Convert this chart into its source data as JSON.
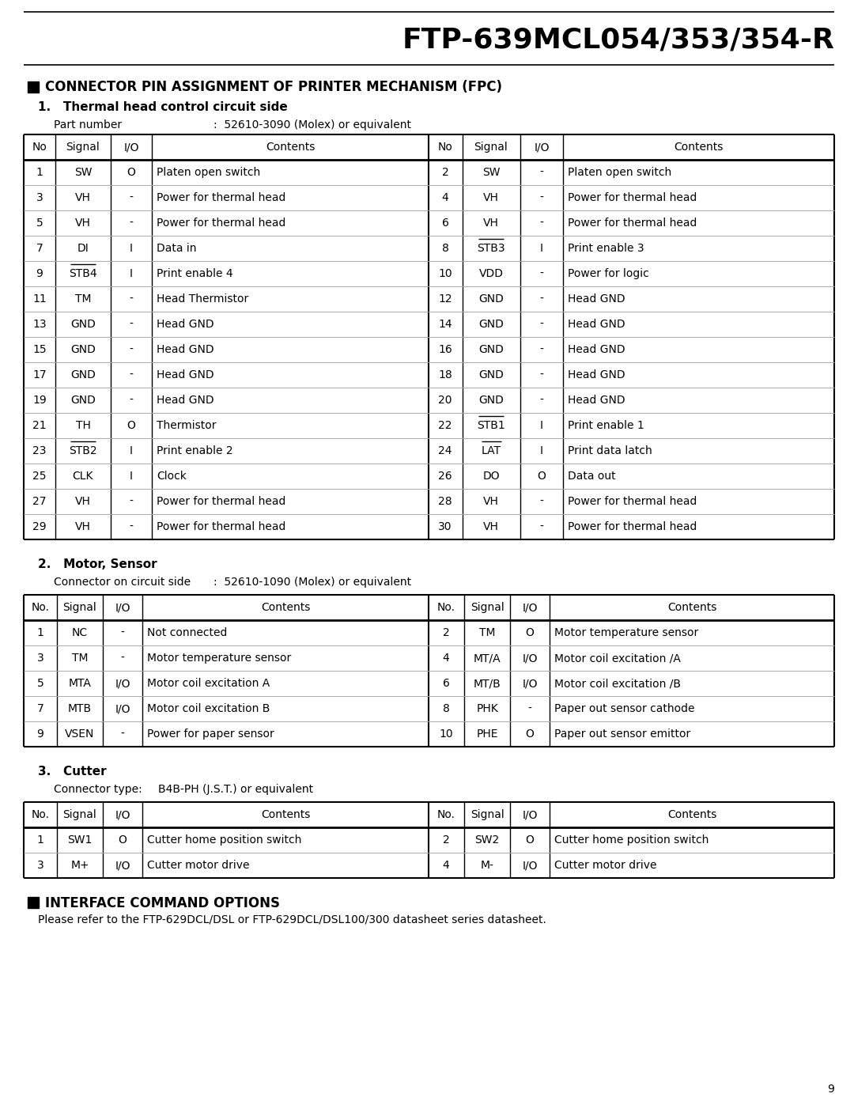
{
  "page_title": "FTP-639MCL054/353/354-R",
  "page_number": "9",
  "section_title": "CONNECTOR PIN ASSIGNMENT OF PRINTER MECHANISM (FPC)",
  "subsection1_title": "1.   Thermal head control circuit side",
  "part_number_label": "Part number",
  "part_number_value": ":  52610-3090 (Molex) or equivalent",
  "table1_headers": [
    "No",
    "Signal",
    "I/O",
    "Contents",
    "No",
    "Signal",
    "I/O",
    "Contents"
  ],
  "table1_data": [
    [
      "1",
      "SW",
      "O",
      "Platen open switch",
      "2",
      "SW",
      "-",
      "Platen open switch"
    ],
    [
      "3",
      "VH",
      "-",
      "Power for thermal head",
      "4",
      "VH",
      "-",
      "Power for thermal head"
    ],
    [
      "5",
      "VH",
      "-",
      "Power for thermal head",
      "6",
      "VH",
      "-",
      "Power for thermal head"
    ],
    [
      "7",
      "DI",
      "I",
      "Data in",
      "8",
      "STB3",
      "I",
      "Print enable 3"
    ],
    [
      "9",
      "STB4",
      "I",
      "Print enable 4",
      "10",
      "VDD",
      "-",
      "Power for logic"
    ],
    [
      "11",
      "TM",
      "-",
      "Head Thermistor",
      "12",
      "GND",
      "-",
      "Head GND"
    ],
    [
      "13",
      "GND",
      "-",
      "Head GND",
      "14",
      "GND",
      "-",
      "Head GND"
    ],
    [
      "15",
      "GND",
      "-",
      "Head GND",
      "16",
      "GND",
      "-",
      "Head GND"
    ],
    [
      "17",
      "GND",
      "-",
      "Head GND",
      "18",
      "GND",
      "-",
      "Head GND"
    ],
    [
      "19",
      "GND",
      "-",
      "Head GND",
      "20",
      "GND",
      "-",
      "Head GND"
    ],
    [
      "21",
      "TH",
      "O",
      "Thermistor",
      "22",
      "STB1",
      "I",
      "Print enable 1"
    ],
    [
      "23",
      "STB2",
      "I",
      "Print enable 2",
      "24",
      "LAT",
      "I",
      "Print data latch"
    ],
    [
      "25",
      "CLK",
      "I",
      "Clock",
      "26",
      "DO",
      "O",
      "Data out"
    ],
    [
      "27",
      "VH",
      "-",
      "Power for thermal head",
      "28",
      "VH",
      "-",
      "Power for thermal head"
    ],
    [
      "29",
      "VH",
      "-",
      "Power for thermal head",
      "30",
      "VH",
      "-",
      "Power for thermal head"
    ]
  ],
  "table1_overline": [
    "STB3",
    "STB4",
    "STB1",
    "STB2",
    "LAT"
  ],
  "subsection2_title": "2.   Motor, Sensor",
  "connector_label": "Connector on circuit side",
  "connector_value": ":  52610-1090 (Molex) or equivalent",
  "table2_headers": [
    "No.",
    "Signal",
    "I/O",
    "Contents",
    "No.",
    "Signal",
    "I/O",
    "Contents"
  ],
  "table2_data": [
    [
      "1",
      "NC",
      "-",
      "Not connected",
      "2",
      "TM",
      "O",
      "Motor temperature sensor"
    ],
    [
      "3",
      "TM",
      "-",
      "Motor temperature sensor",
      "4",
      "MT/A",
      "I/O",
      "Motor coil excitation /A"
    ],
    [
      "5",
      "MTA",
      "I/O",
      "Motor coil excitation A",
      "6",
      "MT/B",
      "I/O",
      "Motor coil excitation /B"
    ],
    [
      "7",
      "MTB",
      "I/O",
      "Motor coil excitation B",
      "8",
      "PHK",
      "-",
      "Paper out sensor cathode"
    ],
    [
      "9",
      "VSEN",
      "-",
      "Power for paper sensor",
      "10",
      "PHE",
      "O",
      "Paper out sensor emittor"
    ]
  ],
  "subsection3_title": "3.   Cutter",
  "cutter_label": "Connector type:",
  "cutter_value": "B4B-PH (J.S.T.) or equivalent",
  "table3_headers": [
    "No.",
    "Signal",
    "I/O",
    "Contents",
    "No.",
    "Signal",
    "I/O",
    "Contents"
  ],
  "table3_data": [
    [
      "1",
      "SW1",
      "O",
      "Cutter home position switch",
      "2",
      "SW2",
      "O",
      "Cutter home position switch"
    ],
    [
      "3",
      "M+",
      "I/O",
      "Cutter motor drive",
      "4",
      "M-",
      "I/O",
      "Cutter motor drive"
    ]
  ],
  "section2_title": "INTERFACE COMMAND OPTIONS",
  "section2_body": "Please refer to the FTP-629DCL/DSL or FTP-629DCL/DSL100/300 datasheet series datasheet.",
  "bg_color": "#ffffff",
  "text_color": "#000000",
  "line_color": "#000000",
  "gray_line": "#aaaaaa"
}
